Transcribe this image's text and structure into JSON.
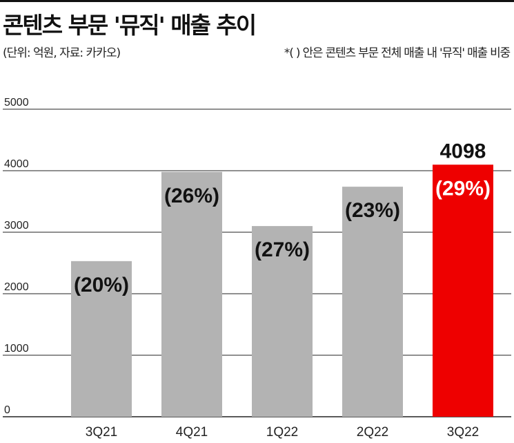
{
  "header": {
    "title": "콘텐츠 부문 '뮤직' 매출 추이",
    "subtitle": "(단위: 억원, 자료: 카카오)",
    "note": "*( ) 안은 콘텐츠 부문 전체 매출 내 '뮤직' 매출 비중"
  },
  "colors": {
    "bar": "#b3b3b3",
    "highlight": "#ee0000",
    "grid": "#222222"
  },
  "chart_data": {
    "type": "bar",
    "categories": [
      "3Q21",
      "4Q21",
      "1Q22",
      "2Q22",
      "3Q22"
    ],
    "values": [
      2530,
      3980,
      3100,
      3740,
      4098
    ],
    "percent_labels": [
      "(20%)",
      "(26%)",
      "(27%)",
      "(23%)",
      "(29%)"
    ],
    "value_labels": [
      "",
      "",
      "",
      "",
      "4098"
    ],
    "highlight_index": 4,
    "title": "콘텐츠 부문 '뮤직' 매출 추이",
    "xlabel": "",
    "ylabel": "",
    "ylim": [
      0,
      5000
    ],
    "yticks": [
      0,
      1000,
      2000,
      3000,
      4000,
      5000
    ],
    "grid": true,
    "unit": "억원"
  }
}
